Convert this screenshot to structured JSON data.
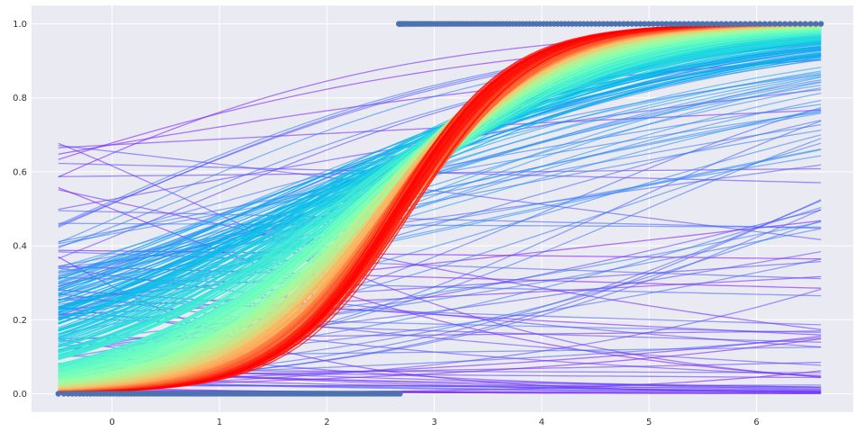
{
  "chart_data": {
    "type": "line",
    "title": "",
    "xlabel": "",
    "ylabel": "",
    "xlim": [
      -0.75,
      6.9
    ],
    "ylim": [
      -0.05,
      1.05
    ],
    "x_ticks": [
      "0",
      "1",
      "2",
      "3",
      "4",
      "5",
      "6"
    ],
    "y_ticks": [
      "0.0",
      "0.2",
      "0.4",
      "0.6",
      "0.8",
      "1.0"
    ],
    "grid": true,
    "legend": "none",
    "background_color": "#eaeaf2",
    "grid_color": "#ffffff",
    "point_color": "#4c72b0",
    "curve_colormap": "rainbow",
    "curve_x_range": [
      -0.5,
      6.6
    ],
    "curve_count_estimate": 500,
    "description_of_curves": "logistic fits y = 1/(1+exp(-(a+b*x))) over training iterations, early purple (flat) to late red (steep)",
    "final_fit": {
      "intercept": -5.0,
      "slope": 1.85
    },
    "scatter_points": {
      "class_0": {
        "y": 0,
        "x_range": [
          -0.5,
          2.68
        ]
      },
      "class_1": {
        "y": 1,
        "x_range": [
          2.67,
          6.6
        ]
      }
    }
  }
}
